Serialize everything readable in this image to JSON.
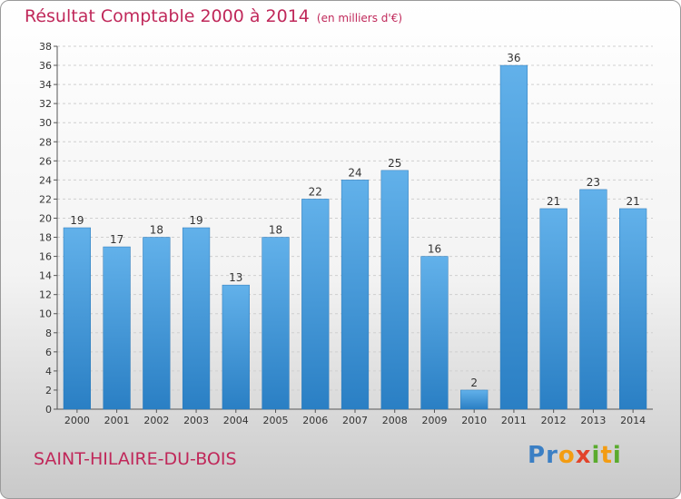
{
  "header": {
    "title": "Résultat Comptable 2000 à 2014",
    "subtitle": "(en milliers d'€)"
  },
  "footer": {
    "place": "SAINT-HILAIRE-DU-BOIS",
    "logo_letters": [
      "P",
      "r",
      "o",
      "x",
      "i",
      "t",
      "i"
    ]
  },
  "colors": {
    "title": "#c0285a",
    "bar_top": "#62b1ea",
    "bar_bottom": "#2a7fc4"
  },
  "chart_data": {
    "type": "bar",
    "title": "Résultat Comptable 2000 à 2014",
    "subtitle": "(en milliers d'€)",
    "categories": [
      "2000",
      "2001",
      "2002",
      "2003",
      "2004",
      "2005",
      "2006",
      "2007",
      "2008",
      "2009",
      "2010",
      "2011",
      "2012",
      "2013",
      "2014"
    ],
    "values": [
      19,
      17,
      18,
      19,
      13,
      18,
      22,
      24,
      25,
      16,
      2,
      36,
      21,
      23,
      21
    ],
    "ylim": [
      0,
      38
    ],
    "yticks": [
      0,
      2,
      4,
      6,
      8,
      10,
      12,
      14,
      16,
      18,
      20,
      22,
      24,
      26,
      28,
      30,
      32,
      34,
      36,
      38
    ],
    "grid": true,
    "xlabel": "",
    "ylabel": ""
  }
}
